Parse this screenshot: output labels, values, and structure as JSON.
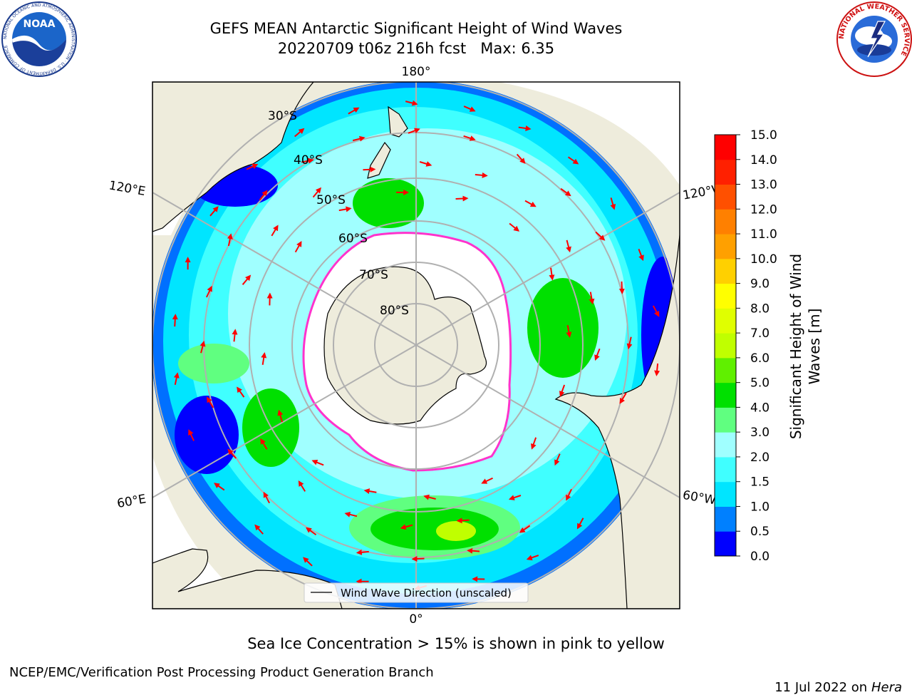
{
  "header": {
    "title_line1": "GEFS MEAN Antarctic Significant Height of Wind Waves",
    "title_line2": "20220709 t06z 216h fcst   Max: 6.35"
  },
  "logos": {
    "noaa": {
      "text": "NOAA",
      "ring_text": "NATIONAL OCEANIC AND ATMOSPHERIC ADMINISTRATION · U.S. DEPARTMENT OF COMMERCE"
    },
    "nws": {
      "ring_text": "NATIONAL WEATHER SERVICE"
    }
  },
  "map": {
    "projection": "south-polar-stereographic",
    "longitude_labels": {
      "top": "180°",
      "bottom": "0°",
      "left_upper": "120°E",
      "left_lower": "60°E",
      "right_upper": "120°W",
      "right_lower": "60°W"
    },
    "latitude_labels": [
      "30°S",
      "40°S",
      "50°S",
      "60°S",
      "70°S",
      "80°S"
    ],
    "legend_label": "Wind Wave Direction (unscaled)",
    "colors": {
      "land": "#eeecdc",
      "ice": "#ffffff",
      "ice_edge": "#ff33cc",
      "arrow": "#ff0000",
      "grid": "#b0b0b0"
    }
  },
  "colorbar": {
    "label": "Significant Height of Wind Waves [m]",
    "tick_labels": [
      "0.0",
      "0.5",
      "1.0",
      "1.5",
      "2.0",
      "3.0",
      "4.0",
      "5.0",
      "6.0",
      "7.0",
      "8.0",
      "9.0",
      "10.0",
      "11.0",
      "12.0",
      "13.0",
      "14.0",
      "15.0"
    ],
    "bin_colors": [
      "#0000ff",
      "#0080ff",
      "#00e5ff",
      "#40ffff",
      "#a0ffff",
      "#60ff80",
      "#00e000",
      "#60f000",
      "#c0ff00",
      "#e0ff00",
      "#ffff00",
      "#ffd000",
      "#ffa000",
      "#ff8000",
      "#ff5000",
      "#ff2000",
      "#ff0000"
    ]
  },
  "footer": {
    "note": "Sea Ice Concentration > 15% is shown in pink to yellow",
    "credit": "NCEP/EMC/Verification Post Processing Product Generation Branch",
    "date": "11 Jul 2022 on ",
    "machine": "Hera"
  }
}
